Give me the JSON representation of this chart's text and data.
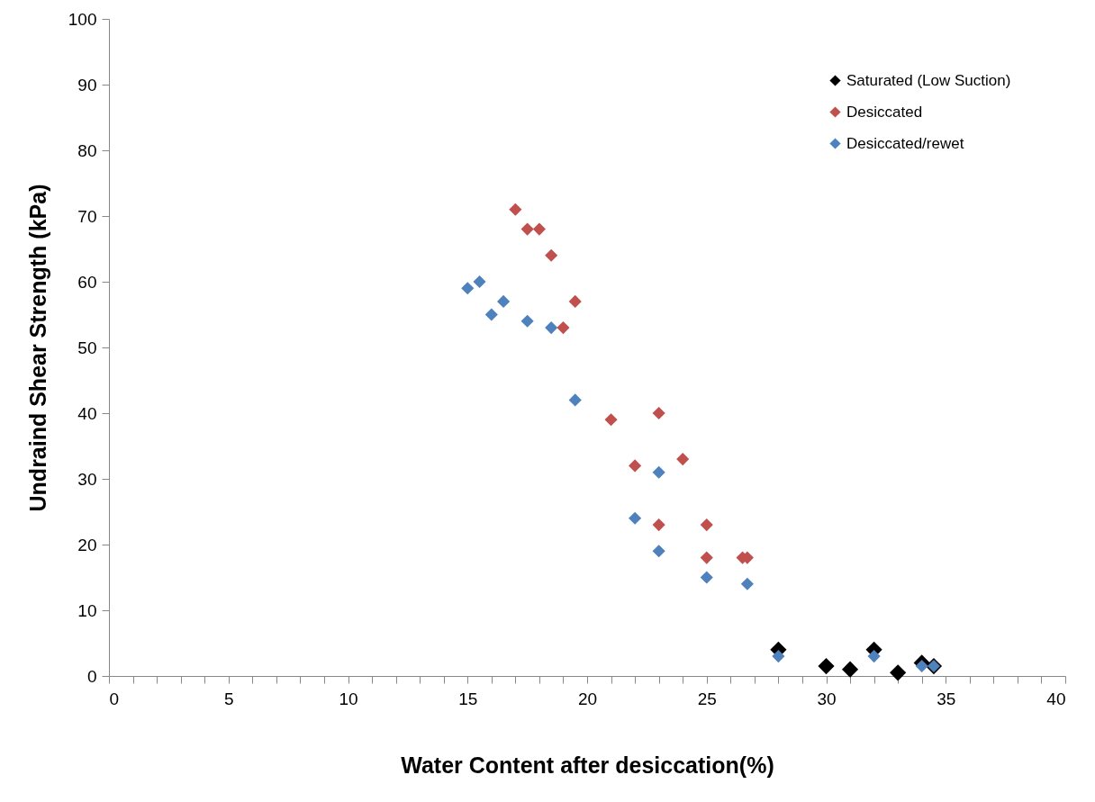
{
  "chart_data": {
    "type": "scatter",
    "xlabel": "Water Content  after desiccation(%)",
    "ylabel": "Undraind Shear Strength (kPa)",
    "xlim": [
      0,
      40
    ],
    "ylim": [
      0,
      100
    ],
    "xticks": [
      0,
      {
        "value": 1,
        "label": null
      },
      {
        "value": 2,
        "label": null
      },
      {
        "value": 3,
        "label": null
      },
      {
        "value": 4,
        "label": null
      },
      5,
      {
        "value": 6,
        "label": null
      },
      {
        "value": 7,
        "label": null
      },
      {
        "value": 8,
        "label": null
      },
      {
        "value": 9,
        "label": null
      },
      10,
      {
        "value": 11,
        "label": null
      },
      {
        "value": 12,
        "label": null
      },
      {
        "value": 13,
        "label": null
      },
      {
        "value": 14,
        "label": null
      },
      15,
      {
        "value": 16,
        "label": null
      },
      {
        "value": 17,
        "label": null
      },
      {
        "value": 18,
        "label": null
      },
      {
        "value": 19,
        "label": null
      },
      20,
      {
        "value": 21,
        "label": null
      },
      {
        "value": 22,
        "label": null
      },
      {
        "value": 23,
        "label": null
      },
      {
        "value": 24,
        "label": null
      },
      25,
      {
        "value": 26,
        "label": null
      },
      {
        "value": 27,
        "label": null
      },
      {
        "value": 28,
        "label": null
      },
      {
        "value": 29,
        "label": null
      },
      30,
      {
        "value": 31,
        "label": null
      },
      {
        "value": 32,
        "label": null
      },
      {
        "value": 33,
        "label": null
      },
      {
        "value": 34,
        "label": null
      },
      35,
      {
        "value": 36,
        "label": null
      },
      {
        "value": 37,
        "label": null
      },
      {
        "value": 38,
        "label": null
      },
      {
        "value": 39,
        "label": null
      },
      40
    ],
    "yticks": [
      0,
      10,
      20,
      30,
      40,
      50,
      60,
      70,
      80,
      90,
      100
    ],
    "grid": false,
    "legend": "top right",
    "marker": "diamond",
    "series": [
      {
        "name": "Saturated (Low Suction)",
        "color": "#000000",
        "x": [
          28,
          30,
          31,
          32,
          33,
          34,
          34.5
        ],
        "values": [
          4,
          1.5,
          1,
          4,
          0.5,
          2,
          1.5
        ]
      },
      {
        "name": "Desiccated",
        "color": "#c0504d",
        "x": [
          17,
          17.5,
          18,
          18.5,
          19.5,
          19,
          21,
          23,
          22,
          24,
          23,
          25,
          25,
          26.5,
          26.7
        ],
        "values": [
          71,
          68,
          68,
          64,
          57,
          53,
          39,
          40,
          32,
          33,
          23,
          23,
          18,
          18,
          18
        ]
      },
      {
        "name": "Desiccated/rewet",
        "color": "#4f81bd",
        "x": [
          15,
          15.5,
          16,
          16.5,
          17.5,
          18.5,
          19.5,
          23,
          22,
          23,
          25,
          26.7,
          28,
          32,
          34,
          34.5
        ],
        "values": [
          59,
          60,
          55,
          57,
          54,
          53,
          42,
          31,
          24,
          19,
          15,
          14,
          3,
          3,
          1.5,
          1.5
        ]
      }
    ]
  }
}
